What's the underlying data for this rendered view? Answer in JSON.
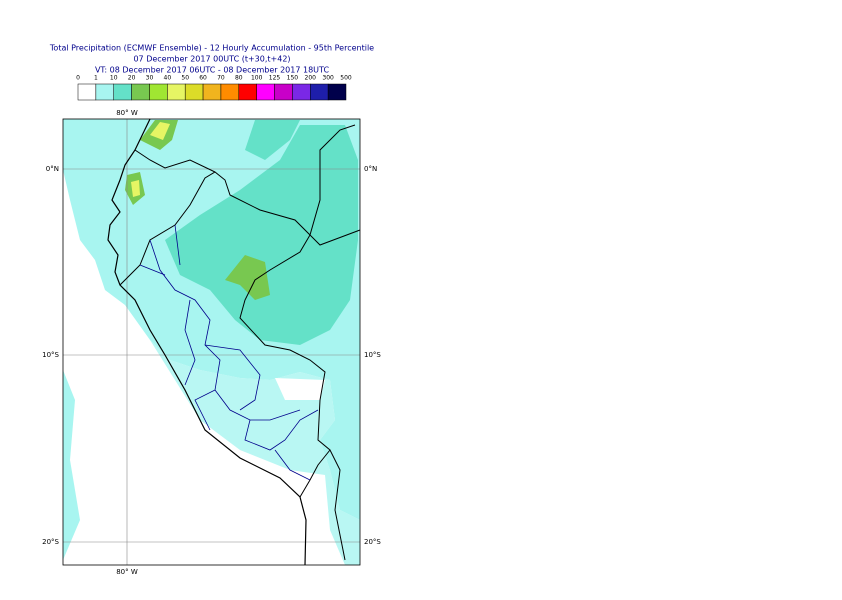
{
  "title": {
    "line1": "Total Precipitation (ECMWF Ensemble) - 12 Hourly Accumulation - 95th Percentile",
    "line2": "07 December 2017 00UTC (t+30,t+42)",
    "line3": "VT: 08 December 2017 06UTC - 08 December 2017 18UTC"
  },
  "legend": {
    "labels": [
      "0",
      "1",
      "10",
      "20",
      "30",
      "40",
      "50",
      "60",
      "70",
      "80",
      "100",
      "125",
      "150",
      "200",
      "300",
      "500"
    ],
    "colors": [
      "#ffffff",
      "#a8f5f0",
      "#64e1c8",
      "#78c850",
      "#a0e632",
      "#e6f564",
      "#dcdc28",
      "#f0b41e",
      "#ff8c00",
      "#ff0000",
      "#ff00ff",
      "#c800c8",
      "#7a28e6",
      "#1e1eaa",
      "#00004b"
    ]
  },
  "map": {
    "top_labels": [
      "80° W"
    ],
    "bottom_labels": [
      "80° W"
    ],
    "left_labels": [
      "0°N",
      "10°S",
      "20°S"
    ],
    "right_labels": [
      "0°N",
      "10°S",
      "20°S"
    ]
  }
}
